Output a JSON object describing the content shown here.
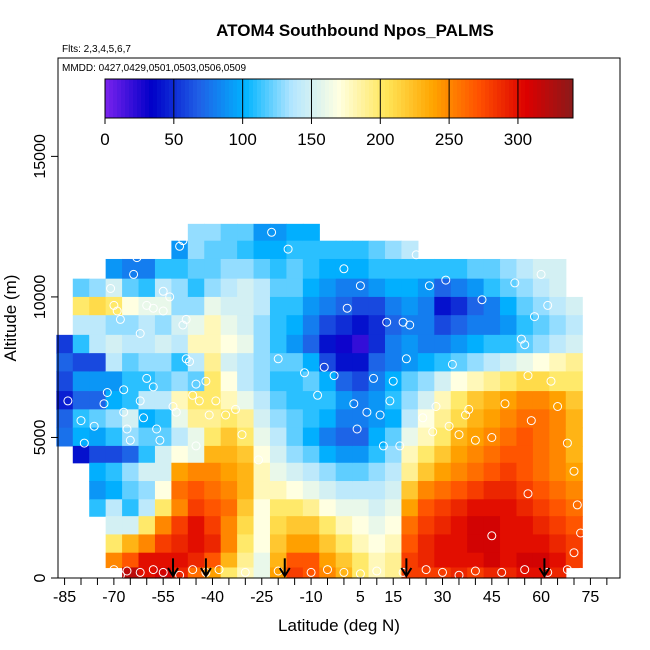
{
  "chart_data": {
    "type": "heatmap",
    "title": "ATOM4 Southbound Npos_PALMS",
    "flights_note": "Flts: 2,3,4,5,6,7",
    "dates_note": "MMDD: 0427,0429,0501,0503,0506,0509",
    "xlabel": "Latitude (deg N)",
    "ylabel": "Altitude (m)",
    "xlim": [
      -87,
      84
    ],
    "ylim": [
      0,
      18500
    ],
    "x_ticks": [
      -85,
      -70,
      -55,
      -40,
      -25,
      -10,
      5,
      15,
      30,
      45,
      60,
      75
    ],
    "x_minor_ticks": [
      -80,
      -75,
      -65,
      -60,
      -50,
      -45,
      -35,
      -30,
      -20,
      -15,
      -5,
      0,
      10,
      20,
      25,
      35,
      40,
      50,
      55,
      65,
      70,
      80
    ],
    "y_ticks": [
      0,
      5000,
      10000,
      15000
    ],
    "colorbar": {
      "ticks": [
        0,
        50,
        100,
        150,
        200,
        250,
        300
      ],
      "range": [
        0,
        340
      ],
      "colors": [
        "#7b22ee",
        "#0000c8",
        "#1f5fe6",
        "#00b4ff",
        "#b4e6ff",
        "#ffffe1",
        "#ffe65a",
        "#ffa500",
        "#ff5000",
        "#dc0000",
        "#8b1a1a"
      ]
    },
    "grid": false,
    "flight_arrows_lat": [
      -52,
      -42,
      -18,
      19,
      61
    ],
    "altitude_bins_m": [
      12300,
      11700,
      11000,
      10300,
      9700,
      9000,
      8300,
      7700,
      7000,
      6300,
      5700,
      5000,
      4400,
      3800,
      3100,
      2500,
      1900,
      1200,
      600,
      150
    ],
    "profiles": [
      {
        "lat": -85,
        "values": [
          null,
          null,
          null,
          null,
          null,
          null,
          55,
          70,
          60,
          45,
          70,
          75,
          null,
          null,
          null,
          null,
          null,
          null,
          null,
          null
        ]
      },
      {
        "lat": -80,
        "values": [
          null,
          null,
          null,
          120,
          200,
          140,
          110,
          60,
          90,
          70,
          110,
          100,
          40,
          null,
          null,
          null,
          null,
          null,
          null,
          null
        ]
      },
      {
        "lat": -75,
        "values": [
          null,
          null,
          null,
          130,
          210,
          140,
          140,
          60,
          90,
          70,
          120,
          95,
          60,
          100,
          90,
          110,
          null,
          null,
          null,
          null
        ]
      },
      {
        "lat": -70,
        "values": [
          null,
          null,
          90,
          150,
          200,
          130,
          150,
          140,
          90,
          100,
          130,
          110,
          60,
          110,
          100,
          140,
          150,
          200,
          250,
          null
        ]
      },
      {
        "lat": -65,
        "values": [
          null,
          null,
          80,
          120,
          170,
          130,
          140,
          120,
          110,
          110,
          150,
          130,
          70,
          130,
          120,
          110,
          150,
          230,
          270,
          320
        ]
      },
      {
        "lat": -60,
        "values": [
          null,
          null,
          80,
          110,
          160,
          140,
          140,
          130,
          110,
          140,
          100,
          120,
          110,
          150,
          130,
          140,
          200,
          250,
          300,
          300
        ]
      },
      {
        "lat": -55,
        "values": [
          null,
          null,
          110,
          140,
          160,
          130,
          150,
          130,
          120,
          140,
          110,
          120,
          150,
          150,
          170,
          200,
          250,
          280,
          300,
          310
        ]
      },
      {
        "lat": -50,
        "values": [
          null,
          90,
          110,
          130,
          130,
          150,
          140,
          110,
          130,
          180,
          160,
          140,
          170,
          240,
          260,
          250,
          280,
          290,
          300,
          290
        ]
      },
      {
        "lat": -45,
        "values": [
          130,
          130,
          120,
          110,
          130,
          160,
          180,
          140,
          120,
          200,
          190,
          160,
          160,
          250,
          270,
          280,
          300,
          300,
          290,
          260
        ]
      },
      {
        "lat": -40,
        "values": [
          130,
          120,
          120,
          130,
          160,
          180,
          180,
          190,
          200,
          200,
          190,
          200,
          230,
          250,
          260,
          270,
          280,
          290,
          270,
          240
        ]
      },
      {
        "lat": -35,
        "values": [
          120,
          120,
          130,
          140,
          150,
          160,
          170,
          150,
          170,
          180,
          200,
          220,
          230,
          240,
          250,
          260,
          250,
          250,
          230,
          200
        ]
      },
      {
        "lat": -30,
        "values": [
          120,
          110,
          130,
          150,
          150,
          150,
          160,
          140,
          140,
          160,
          190,
          200,
          220,
          230,
          230,
          220,
          210,
          200,
          190,
          180
        ]
      },
      {
        "lat": -25,
        "values": [
          90,
          100,
          120,
          140,
          140,
          130,
          130,
          130,
          130,
          140,
          150,
          160,
          170,
          180,
          180,
          170,
          170,
          170,
          160,
          160
        ]
      },
      {
        "lat": -20,
        "values": [
          90,
          100,
          110,
          120,
          110,
          110,
          110,
          120,
          110,
          120,
          130,
          140,
          150,
          160,
          180,
          200,
          210,
          220,
          230,
          240
        ]
      },
      {
        "lat": -15,
        "values": [
          100,
          110,
          120,
          120,
          110,
          100,
          90,
          120,
          110,
          110,
          120,
          120,
          130,
          150,
          170,
          200,
          220,
          240,
          270,
          280
        ]
      },
      {
        "lat": -10,
        "values": [
          100,
          110,
          110,
          100,
          90,
          80,
          70,
          100,
          120,
          110,
          110,
          100,
          120,
          140,
          160,
          190,
          220,
          240,
          270,
          270
        ]
      },
      {
        "lat": -5,
        "values": [
          null,
          110,
          100,
          90,
          80,
          60,
          40,
          60,
          100,
          110,
          100,
          80,
          100,
          130,
          150,
          170,
          200,
          220,
          240,
          250
        ]
      },
      {
        "lat": 0,
        "values": [
          null,
          110,
          100,
          80,
          70,
          50,
          30,
          40,
          70,
          90,
          80,
          70,
          90,
          120,
          140,
          160,
          180,
          200,
          220,
          230
        ]
      },
      {
        "lat": 5,
        "values": [
          null,
          110,
          100,
          80,
          60,
          40,
          20,
          40,
          60,
          80,
          80,
          70,
          90,
          120,
          140,
          160,
          170,
          180,
          200,
          200
        ]
      },
      {
        "lat": 10,
        "values": [
          null,
          120,
          110,
          90,
          60,
          50,
          50,
          70,
          80,
          90,
          90,
          100,
          110,
          130,
          140,
          150,
          160,
          170,
          180,
          180
        ]
      },
      {
        "lat": 15,
        "values": [
          null,
          130,
          110,
          100,
          80,
          70,
          80,
          80,
          100,
          110,
          100,
          120,
          130,
          140,
          150,
          160,
          170,
          180,
          190,
          190
        ]
      },
      {
        "lat": 20,
        "values": [
          null,
          140,
          110,
          100,
          90,
          80,
          90,
          90,
          120,
          130,
          140,
          160,
          180,
          190,
          220,
          240,
          260,
          270,
          280,
          280
        ]
      },
      {
        "lat": 25,
        "values": [
          null,
          null,
          110,
          90,
          80,
          80,
          80,
          100,
          130,
          150,
          170,
          180,
          200,
          220,
          250,
          270,
          280,
          290,
          290,
          280
        ]
      },
      {
        "lat": 30,
        "values": [
          null,
          null,
          110,
          70,
          40,
          60,
          80,
          110,
          150,
          180,
          190,
          200,
          220,
          240,
          260,
          280,
          290,
          300,
          300,
          280
        ]
      },
      {
        "lat": 35,
        "values": [
          null,
          null,
          110,
          80,
          50,
          70,
          90,
          120,
          170,
          200,
          210,
          230,
          240,
          250,
          270,
          290,
          300,
          300,
          300,
          290
        ]
      },
      {
        "lat": 40,
        "values": [
          null,
          null,
          120,
          90,
          70,
          80,
          100,
          130,
          180,
          220,
          230,
          240,
          250,
          260,
          280,
          300,
          310,
          310,
          300,
          280
        ]
      },
      {
        "lat": 45,
        "values": [
          null,
          null,
          120,
          110,
          80,
          80,
          110,
          140,
          190,
          230,
          240,
          250,
          260,
          270,
          290,
          300,
          310,
          310,
          310,
          290
        ]
      },
      {
        "lat": 50,
        "values": [
          null,
          null,
          130,
          120,
          100,
          90,
          110,
          150,
          200,
          240,
          250,
          260,
          270,
          280,
          290,
          300,
          300,
          300,
          300,
          290
        ]
      },
      {
        "lat": 55,
        "values": [
          null,
          null,
          140,
          130,
          120,
          110,
          120,
          160,
          210,
          250,
          260,
          270,
          270,
          270,
          280,
          290,
          300,
          300,
          310,
          300
        ]
      },
      {
        "lat": 60,
        "values": [
          null,
          null,
          150,
          140,
          130,
          120,
          130,
          170,
          210,
          250,
          260,
          260,
          260,
          260,
          270,
          280,
          290,
          300,
          310,
          300
        ]
      },
      {
        "lat": 65,
        "values": [
          null,
          null,
          150,
          150,
          140,
          130,
          140,
          180,
          200,
          240,
          250,
          250,
          250,
          250,
          260,
          270,
          280,
          290,
          300,
          290
        ]
      },
      {
        "lat": 70,
        "values": [
          null,
          null,
          null,
          null,
          150,
          140,
          150,
          190,
          200,
          220,
          230,
          230,
          230,
          240,
          250,
          260,
          270,
          280,
          280,
          null
        ]
      }
    ],
    "sample_points": [
      [
        -84,
        6300
      ],
      [
        -80,
        5600
      ],
      [
        -79,
        4800
      ],
      [
        -76,
        5400
      ],
      [
        -73,
        6200
      ],
      [
        -72,
        6600
      ],
      [
        -71,
        10300
      ],
      [
        -70,
        9700
      ],
      [
        -69,
        9500
      ],
      [
        -68,
        9200
      ],
      [
        -67,
        6700
      ],
      [
        -67,
        5900
      ],
      [
        -66,
        5300
      ],
      [
        -65,
        4900
      ],
      [
        -64,
        10800
      ],
      [
        -63,
        11400
      ],
      [
        -62,
        6300
      ],
      [
        -62,
        8700
      ],
      [
        -61,
        5700
      ],
      [
        -60,
        7100
      ],
      [
        -60,
        9700
      ],
      [
        -58,
        9600
      ],
      [
        -58,
        6800
      ],
      [
        -57,
        5300
      ],
      [
        -56,
        4900
      ],
      [
        -55,
        10200
      ],
      [
        -55,
        9500
      ],
      [
        -53,
        10000
      ],
      [
        -52,
        6100
      ],
      [
        -51,
        5900
      ],
      [
        -50,
        11800
      ],
      [
        -49,
        12000
      ],
      [
        -49,
        9000
      ],
      [
        -48,
        9200
      ],
      [
        -48,
        7800
      ],
      [
        -47,
        7700
      ],
      [
        -46,
        6500
      ],
      [
        -45,
        6900
      ],
      [
        -45,
        4700
      ],
      [
        -44,
        6300
      ],
      [
        -42,
        7000
      ],
      [
        -41,
        5800
      ],
      [
        -39,
        6300
      ],
      [
        -36,
        5800
      ],
      [
        -33,
        6000
      ],
      [
        -31,
        5100
      ],
      [
        -26,
        4200
      ],
      [
        -22,
        12300
      ],
      [
        -20,
        7800
      ],
      [
        -17,
        11700
      ],
      [
        -12,
        7300
      ],
      [
        -8,
        6500
      ],
      [
        -6,
        7500
      ],
      [
        -3,
        7200
      ],
      [
        0,
        11000
      ],
      [
        1,
        9600
      ],
      [
        3,
        6200
      ],
      [
        4,
        5300
      ],
      [
        5,
        10400
      ],
      [
        7,
        5900
      ],
      [
        9,
        7100
      ],
      [
        11,
        5800
      ],
      [
        12,
        4700
      ],
      [
        13,
        9100
      ],
      [
        14,
        6300
      ],
      [
        15,
        7000
      ],
      [
        17,
        4700
      ],
      [
        18,
        9100
      ],
      [
        19,
        7800
      ],
      [
        20,
        9000
      ],
      [
        22,
        11500
      ],
      [
        24,
        5700
      ],
      [
        26,
        10400
      ],
      [
        27,
        5200
      ],
      [
        28,
        6100
      ],
      [
        31,
        10600
      ],
      [
        32,
        5400
      ],
      [
        33,
        7600
      ],
      [
        35,
        5100
      ],
      [
        37,
        5800
      ],
      [
        38,
        6000
      ],
      [
        40,
        4900
      ],
      [
        42,
        9900
      ],
      [
        45,
        5000
      ],
      [
        49,
        6200
      ],
      [
        52,
        10500
      ],
      [
        54,
        8500
      ],
      [
        55,
        8300
      ],
      [
        56,
        7200
      ],
      [
        57,
        5600
      ],
      [
        58,
        9300
      ],
      [
        60,
        10800
      ],
      [
        62,
        9700
      ],
      [
        63,
        7000
      ],
      [
        65,
        6100
      ],
      [
        68,
        4800
      ],
      [
        70,
        3800
      ],
      [
        71,
        2600
      ],
      [
        72,
        1600
      ],
      [
        70,
        900
      ],
      [
        -74,
        200
      ],
      [
        -70,
        300
      ],
      [
        -68,
        100
      ],
      [
        -66,
        250
      ],
      [
        -62,
        200
      ],
      [
        -58,
        300
      ],
      [
        -55,
        200
      ],
      [
        -50,
        100
      ],
      [
        -46,
        300
      ],
      [
        -42,
        200
      ],
      [
        -38,
        300
      ],
      [
        -30,
        200
      ],
      [
        -20,
        250
      ],
      [
        -10,
        200
      ],
      [
        -5,
        300
      ],
      [
        0,
        200
      ],
      [
        5,
        150
      ],
      [
        10,
        250
      ],
      [
        18,
        200
      ],
      [
        25,
        300
      ],
      [
        30,
        200
      ],
      [
        35,
        100
      ],
      [
        40,
        250
      ],
      [
        48,
        200
      ],
      [
        55,
        300
      ],
      [
        62,
        200
      ],
      [
        68,
        300
      ],
      [
        72,
        200
      ],
      [
        45,
        1500
      ],
      [
        56,
        3000
      ]
    ]
  }
}
